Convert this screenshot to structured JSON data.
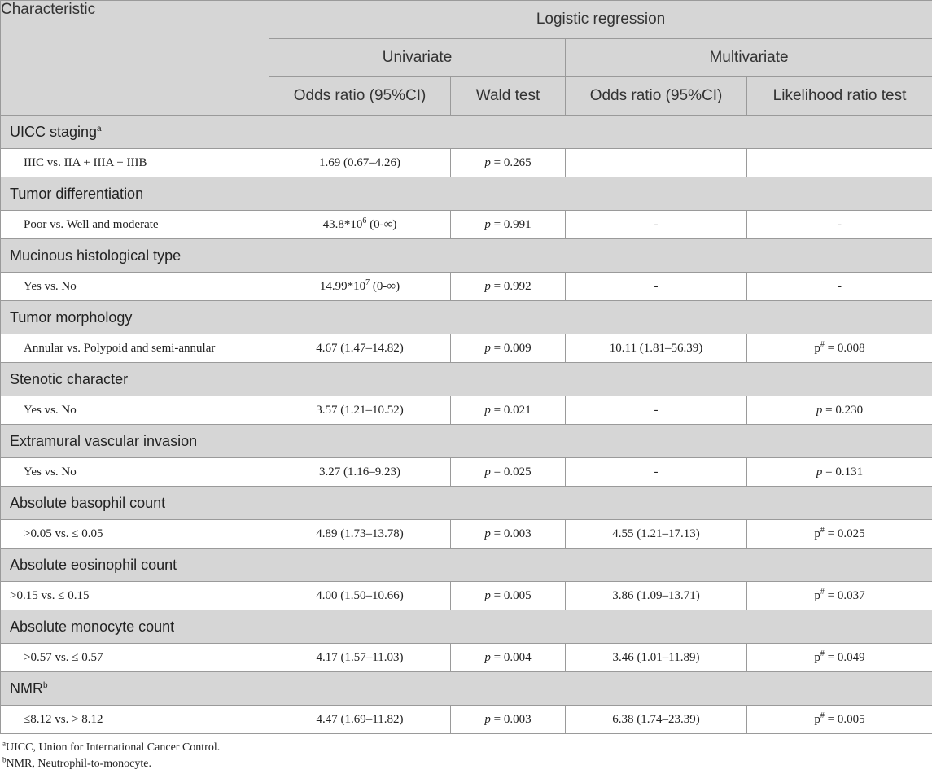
{
  "header": {
    "characteristic": "Characteristic",
    "logistic_regression": "Logistic regression",
    "univariate": "Univariate",
    "multivariate": "Multivariate",
    "uni_or": "Odds ratio (95%CI)",
    "uni_wald": "Wald test",
    "multi_or": "Odds ratio (95%CI)",
    "multi_lrt": "Likelihood ratio test"
  },
  "groups": [
    {
      "title": "UICC staging",
      "title_sup": "a",
      "row": {
        "label": "IIIC vs. IIA + IIIA + IIIB",
        "uni_or": "1.69 (0.67–4.26)",
        "p_prefix": "p",
        "p_value": " = 0.265",
        "multi_or": "",
        "lrt_prefix": "",
        "lrt_sup": "",
        "lrt_value": ""
      }
    },
    {
      "title": "Tumor differentiation",
      "title_sup": "",
      "row": {
        "label": "Poor vs. Well and moderate",
        "uni_or_base": "43.8*10",
        "uni_or_sup": "6",
        "uni_or_rest": " (0-∞)",
        "p_prefix": "p",
        "p_value": " = 0.991",
        "multi_or": "-",
        "lrt_prefix": "",
        "lrt_sup": "",
        "lrt_value": "-"
      }
    },
    {
      "title": "Mucinous histological type",
      "title_sup": "",
      "row": {
        "label": "Yes vs. No",
        "uni_or_base": "14.99*10",
        "uni_or_sup": "7",
        "uni_or_rest": " (0-∞)",
        "p_prefix": "p",
        "p_value": " = 0.992",
        "multi_or": "-",
        "lrt_prefix": "",
        "lrt_sup": "",
        "lrt_value": "-"
      }
    },
    {
      "title": "Tumor morphology",
      "title_sup": "",
      "row": {
        "label": "Annular vs. Polypoid and semi-annular",
        "uni_or": "4.67 (1.47–14.82)",
        "p_prefix": "p",
        "p_value": " = 0.009",
        "multi_or": "10.11 (1.81–56.39)",
        "lrt_prefix": "p",
        "lrt_sup": "#",
        "lrt_value": " = 0.008"
      }
    },
    {
      "title": "Stenotic character",
      "title_sup": "",
      "row": {
        "label": "Yes vs. No",
        "uni_or": "3.57 (1.21–10.52)",
        "p_prefix": "p",
        "p_value": " = 0.021",
        "multi_or": "-",
        "lrt_prefix": "p",
        "lrt_sup": "",
        "lrt_value": " = 0.230"
      }
    },
    {
      "title": "Extramural vascular invasion",
      "title_sup": "",
      "row": {
        "label": "Yes vs. No",
        "uni_or": "3.27 (1.16–9.23)",
        "p_prefix": "p",
        "p_value": " = 0.025",
        "multi_or": "-",
        "lrt_prefix": "p",
        "lrt_sup": "",
        "lrt_value": " = 0.131"
      }
    },
    {
      "title": "Absolute basophil count",
      "title_sup": "",
      "row": {
        "label": ">0.05 vs. ≤ 0.05",
        "uni_or": "4.89 (1.73–13.78)",
        "p_prefix": "p",
        "p_value": " = 0.003",
        "multi_or": "4.55 (1.21–17.13)",
        "lrt_prefix": "p",
        "lrt_sup": "#",
        "lrt_value": " = 0.025"
      }
    },
    {
      "title": "Absolute eosinophil count",
      "title_sup": "",
      "row": {
        "label": ">0.15 vs. ≤ 0.15",
        "uni_or": "4.00 (1.50–10.66)",
        "p_prefix": "p",
        "p_value": " = 0.005",
        "multi_or": "3.86 (1.09–13.71)",
        "lrt_prefix": "p",
        "lrt_sup": "#",
        "lrt_value": " = 0.037"
      }
    },
    {
      "title": "Absolute monocyte count",
      "title_sup": "",
      "row": {
        "label": ">0.57 vs. ≤ 0.57",
        "uni_or": "4.17 (1.57–11.03)",
        "p_prefix": "p",
        "p_value": " = 0.004",
        "multi_or": "3.46 (1.01–11.89)",
        "lrt_prefix": "p",
        "lrt_sup": "#",
        "lrt_value": " = 0.049"
      }
    },
    {
      "title": "NMR",
      "title_sup": "b",
      "row": {
        "label": "≤8.12 vs. > 8.12",
        "uni_or": "4.47 (1.69–11.82)",
        "p_prefix": "p",
        "p_value": " = 0.003",
        "multi_or": "6.38 (1.74–23.39)",
        "lrt_prefix": "p",
        "lrt_sup": "#",
        "lrt_value": " = 0.005"
      }
    }
  ],
  "footnotes": [
    {
      "sup": "a",
      "text": "UICC, Union for International Cancer Control."
    },
    {
      "sup": "b",
      "text": "NMR, Neutrophil-to-monocyte."
    }
  ]
}
